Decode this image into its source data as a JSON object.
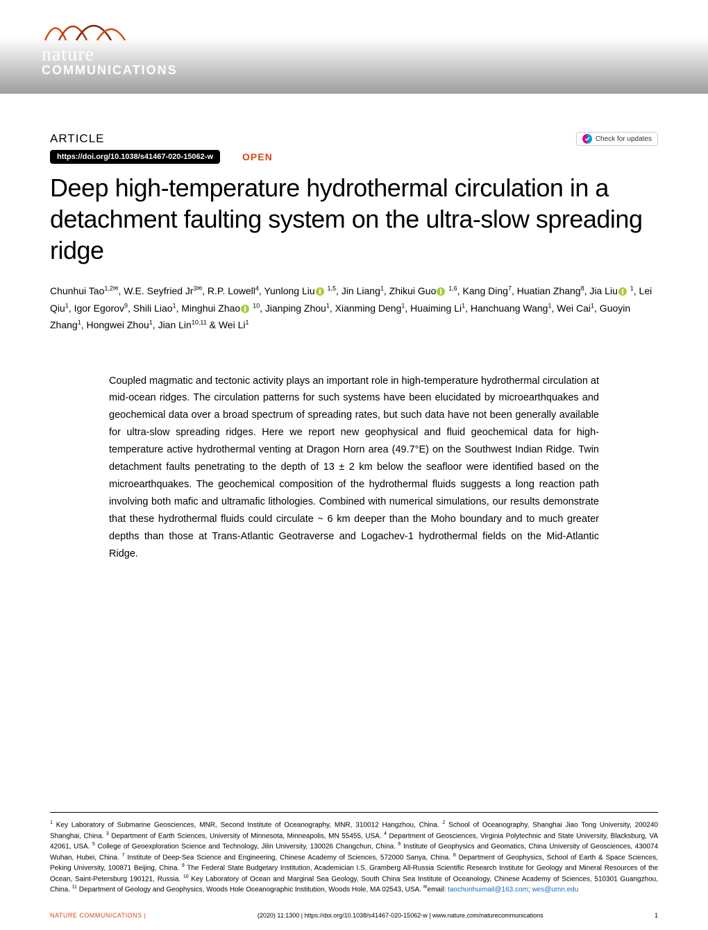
{
  "journal": {
    "logo_name_line1": "nature",
    "logo_name_line2": "COMMUNICATIONS",
    "logo_wave_colors": [
      "#d9480f",
      "#b8390a",
      "#7a2607"
    ],
    "banner_gradient_top": "#ffffff",
    "banner_gradient_bottom": "#9e9e9e"
  },
  "article_header": {
    "label": "ARTICLE",
    "doi": "https://doi.org/10.1038/s41467-020-15062-w",
    "open_access": "OPEN",
    "check_updates": "Check for updates",
    "check_icon_colors": [
      "#d9048e",
      "#00a0dc"
    ]
  },
  "title": "Deep high-temperature hydrothermal circulation in a detachment faulting system on the ultra-slow spreading ridge",
  "authors_html": "Chunhui Tao<sup>1,2✉</sup>, W.E. Seyfried Jr<sup>3✉</sup>, R.P. Lowell<sup>4</sup>, Yunlong Liu<span class='orcid-icon'></span> <sup>1,5</sup>, Jin Liang<sup>1</sup>, Zhikui Guo<span class='orcid-icon'></span> <sup>1,6</sup>, Kang Ding<sup>7</sup>, Huatian Zhang<sup>8</sup>, Jia Liu<span class='orcid-icon'></span> <sup>1</sup>, Lei Qiu<sup>1</sup>, Igor Egorov<sup>9</sup>, Shili Liao<sup>1</sup>, Minghui Zhao<span class='orcid-icon'></span> <sup>10</sup>, Jianping Zhou<sup>1</sup>, Xianming Deng<sup>1</sup>, Huaiming Li<sup>1</sup>, Hanchuang Wang<sup>1</sup>, Wei Cai<sup>1</sup>, Guoyin Zhang<sup>1</sup>, Hongwei Zhou<sup>1</sup>, Jian Lin<sup>10,11</sup> & Wei Li<sup>1</sup>",
  "abstract": "Coupled magmatic and tectonic activity plays an important role in high-temperature hydrothermal circulation at mid-ocean ridges. The circulation patterns for such systems have been elucidated by microearthquakes and geochemical data over a broad spectrum of spreading rates, but such data have not been generally available for ultra-slow spreading ridges. Here we report new geophysical and fluid geochemical data for high-temperature active hydrothermal venting at Dragon Horn area (49.7°E) on the Southwest Indian Ridge. Twin detachment faults penetrating to the depth of 13 ± 2 km below the seafloor were identified based on the microearthquakes. The geochemical composition of the hydrothermal fluids suggests a long reaction path involving both mafic and ultramafic lithologies. Combined with numerical simulations, our results demonstrate that these hydrothermal fluids could circulate ~ 6 km deeper than the Moho boundary and to much greater depths than those at Trans-Atlantic Geotraverse and Logachev-1 hydrothermal fields on the Mid-Atlantic Ridge.",
  "affiliations_html": "<sup>1</sup> Key Laboratory of Submarine Geosciences, MNR, Second Institute of Oceanography, MNR, 310012 Hangzhou, China. <sup>2</sup> School of Oceanography, Shanghai Jiao Tong University, 200240 Shanghai, China. <sup>3</sup> Department of Earth Sciences, University of Minnesota, Minneapolis, MN 55455, USA. <sup>4</sup> Department of Geosciences, Virginia Polytechnic and State University, Blacksburg, VA 42061, USA. <sup>5</sup> College of Geoexploration Science and Technology, Jilin University, 130026 Changchun, China. <sup>6</sup> Institute of Geophysics and Geomatics, China University of Geosciences, 430074 Wuhan, Hubei, China. <sup>7</sup> Institute of Deep-Sea Science and Engineering, Chinese Academy of Sciences, 572000 Sanya, China. <sup>8</sup> Department of Geophysics, School of Earth & Space Sciences, Peking University, 100871 Beijing, China. <sup>9</sup> The Federal State Budgetary Institution, Academician I.S. Gramberg All-Russia Scientific Research Institute for Geology and Mineral Resources of the Ocean, Saint-Petersburg 190121, Russia. <sup>10</sup> Key Laboratory of Ocean and Marginal Sea Geology, South China Sea Institute of Oceanology, Chinese Academy of Sciences, 510301 Guangzhou, China. <sup>11</sup> Department of Geology and Geophysics, Woods Hole Oceanographic Institution, Woods Hole, MA 02543, USA. <sup>✉</sup>email: <span class='email-link'>taochunhuimail@163.com</span>; <span class='email-link'>wes@umn.edu</span>",
  "footer": {
    "journal": "NATURE COMMUNICATIONS |",
    "citation": "(2020) 11:1300 | https://doi.org/10.1038/s41467-020-15062-w | www.nature.com/naturecommunications",
    "page": "1"
  },
  "colors": {
    "accent_orange": "#d9480f",
    "link_blue": "#1a6bb8",
    "orcid_green": "#a6ce39",
    "text_black": "#000000",
    "background": "#ffffff"
  },
  "typography": {
    "title_fontsize": 36,
    "body_fontsize": 14.5,
    "authors_fontsize": 14,
    "affiliations_fontsize": 10,
    "footer_fontsize": 9
  }
}
